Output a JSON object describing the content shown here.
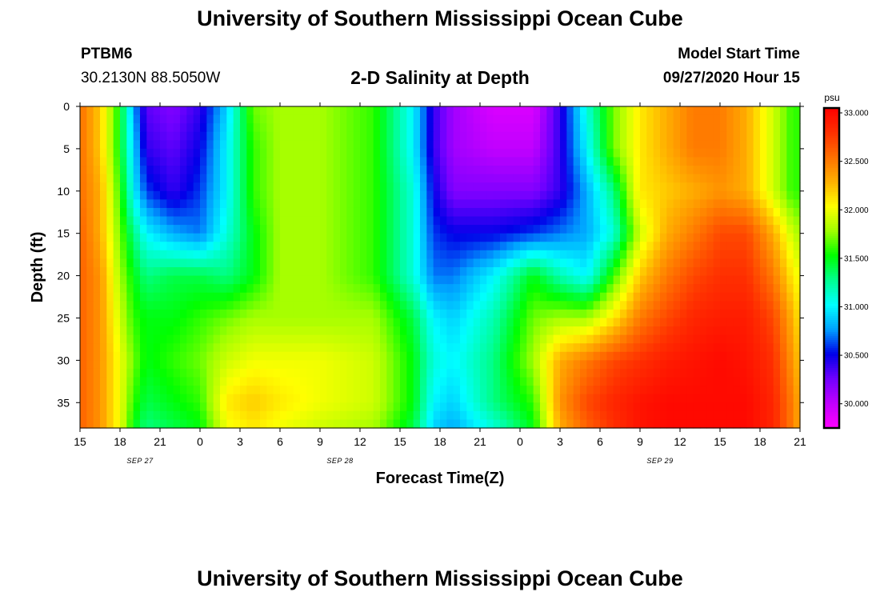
{
  "header": {
    "title": "University of Southern Mississippi Ocean Cube",
    "station_id": "PTBM6",
    "station_coords": "30.2130N 88.5050W",
    "chart_title": "2-D Salinity at Depth",
    "model_start_label": "Model Start Time",
    "model_start_value": "09/27/2020 Hour 15"
  },
  "footer": {
    "title": "University of Southern Mississippi Ocean Cube"
  },
  "chart_data": {
    "type": "heatmap",
    "title": "2-D Salinity at Depth",
    "xlabel": "Forecast Time(Z)",
    "ylabel": "Depth (ft)",
    "x_tick_labels": [
      "15",
      "18",
      "21",
      "0",
      "3",
      "6",
      "9",
      "12",
      "15",
      "18",
      "21",
      "0",
      "3",
      "6",
      "9",
      "12",
      "15",
      "18",
      "21"
    ],
    "date_labels": [
      {
        "label": "SEP 27",
        "after_tick": 1
      },
      {
        "label": "SEP 28",
        "after_tick": 6
      },
      {
        "label": "SEP 29",
        "after_tick": 14
      }
    ],
    "x_hours_from_start": [
      0,
      3,
      6,
      9,
      12,
      15,
      18,
      21,
      24,
      27,
      30,
      33,
      36,
      39,
      42,
      45,
      48,
      51,
      54
    ],
    "xlim_hours": [
      0,
      54
    ],
    "y_ticks": [
      0,
      5,
      10,
      15,
      20,
      25,
      30,
      35
    ],
    "ylim": [
      0,
      38
    ],
    "y_inverted": true,
    "colorbar": {
      "unit": "psu",
      "tick_labels": [
        "33.000",
        "32.500",
        "32.000",
        "31.500",
        "31.000",
        "30.500",
        "30.000"
      ],
      "range": [
        29.75,
        33.05
      ],
      "colors": [
        "#ff00ff",
        "#c000ff",
        "#7000ff",
        "#0000e8",
        "#00a0ff",
        "#00ffff",
        "#00ff90",
        "#00ff00",
        "#a0ff00",
        "#ffff00",
        "#ffb000",
        "#ff7000",
        "#ff3000",
        "#ff0000"
      ]
    },
    "depths": [
      0,
      5,
      10,
      15,
      20,
      25,
      30,
      35,
      38
    ],
    "times": [
      0,
      1.5,
      3,
      4,
      5,
      7,
      9,
      11,
      13,
      15,
      18,
      22,
      25,
      26.5,
      28,
      31,
      34,
      36,
      38,
      40,
      42,
      44,
      46,
      48,
      50,
      52,
      53.4,
      54
    ],
    "values": [
      [
        32.55,
        32.2,
        31.5,
        30.8,
        30.3,
        30.2,
        30.4,
        30.9,
        31.7,
        31.8,
        31.8,
        31.6,
        31.0,
        30.4,
        30.1,
        29.9,
        29.9,
        30.4,
        31.1,
        31.7,
        32.1,
        32.3,
        32.5,
        32.5,
        32.3,
        31.9,
        31.6,
        31.6
      ],
      [
        32.55,
        32.2,
        31.5,
        30.9,
        30.4,
        30.3,
        30.5,
        31.0,
        31.6,
        31.8,
        31.8,
        31.6,
        31.0,
        30.4,
        30.1,
        30.0,
        30.0,
        30.4,
        31.0,
        31.7,
        32.1,
        32.3,
        32.5,
        32.5,
        32.3,
        31.9,
        31.6,
        31.6
      ],
      [
        32.55,
        32.3,
        31.6,
        31.0,
        30.6,
        30.4,
        30.6,
        31.0,
        31.6,
        31.8,
        31.8,
        31.6,
        31.1,
        30.5,
        30.2,
        30.2,
        30.2,
        30.4,
        30.8,
        31.3,
        32.1,
        32.2,
        32.3,
        32.4,
        32.3,
        31.9,
        31.6,
        31.6
      ],
      [
        32.6,
        32.3,
        31.7,
        31.3,
        31.0,
        30.8,
        30.7,
        31.1,
        31.5,
        31.8,
        31.8,
        31.6,
        31.1,
        30.6,
        30.5,
        30.5,
        30.6,
        30.7,
        30.8,
        31.1,
        31.9,
        32.3,
        32.5,
        32.7,
        32.7,
        32.3,
        31.9,
        31.8
      ],
      [
        32.6,
        32.4,
        31.8,
        31.5,
        31.3,
        31.4,
        31.4,
        31.3,
        31.5,
        31.8,
        31.8,
        31.6,
        31.1,
        30.7,
        30.7,
        31.0,
        31.5,
        31.2,
        31.0,
        31.6,
        32.2,
        32.5,
        32.7,
        32.8,
        32.8,
        32.5,
        32.1,
        32.0
      ],
      [
        32.6,
        32.4,
        31.9,
        31.6,
        31.5,
        31.5,
        31.6,
        31.7,
        31.8,
        31.8,
        31.8,
        31.8,
        31.4,
        31.0,
        30.9,
        31.2,
        31.7,
        31.8,
        31.8,
        32.1,
        32.5,
        32.7,
        32.85,
        32.9,
        32.9,
        32.7,
        32.3,
        32.1
      ],
      [
        32.6,
        32.4,
        32.0,
        31.7,
        31.5,
        31.6,
        31.7,
        31.9,
        32.0,
        32.0,
        32.0,
        31.9,
        31.5,
        31.1,
        31.0,
        31.3,
        31.8,
        32.3,
        32.5,
        32.7,
        32.8,
        32.9,
        32.95,
        33.0,
        32.95,
        32.8,
        32.4,
        32.2
      ],
      [
        32.6,
        32.4,
        32.0,
        31.6,
        31.4,
        31.5,
        31.6,
        32.1,
        32.2,
        32.1,
        32.0,
        31.9,
        31.5,
        31.0,
        30.9,
        31.3,
        31.6,
        32.4,
        32.7,
        32.85,
        32.95,
        33.0,
        33.0,
        33.0,
        33.0,
        32.85,
        32.5,
        32.3
      ],
      [
        32.6,
        32.4,
        32.0,
        31.5,
        31.3,
        31.4,
        31.5,
        32.0,
        32.1,
        32.0,
        31.9,
        31.8,
        31.4,
        30.9,
        30.8,
        31.1,
        31.5,
        32.3,
        32.6,
        32.8,
        32.95,
        33.0,
        33.0,
        33.0,
        33.0,
        32.85,
        32.5,
        32.3
      ]
    ]
  }
}
